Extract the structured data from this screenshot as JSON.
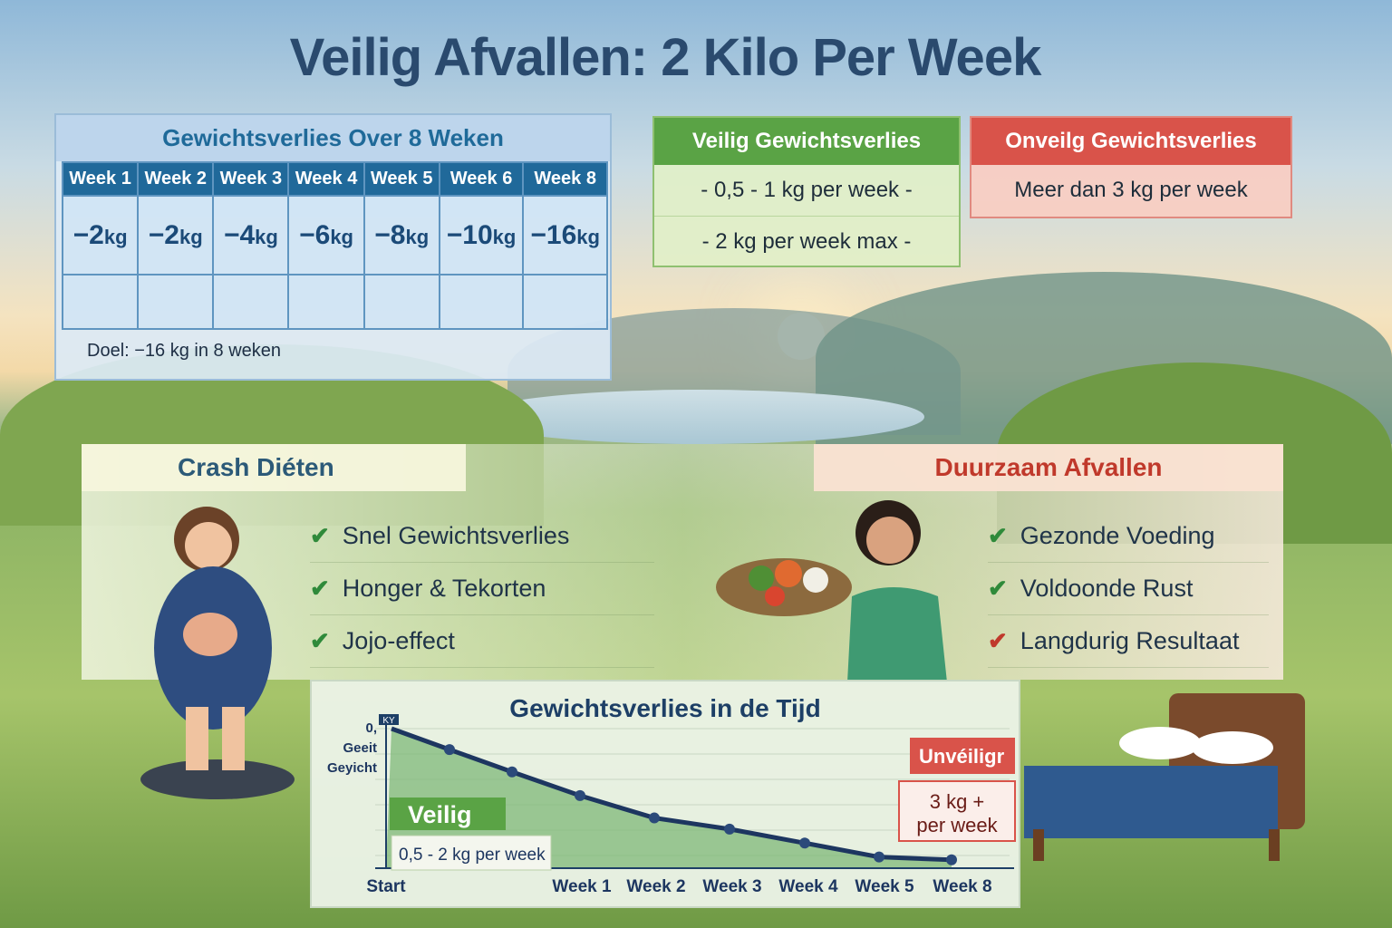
{
  "title": "Veilig Afvallen: 2 Kilo Per Week",
  "table": {
    "title": "Gewichtsverlies Over 8 Weken",
    "headers": [
      "Week 1",
      "Week 2",
      "Week 3",
      "Week 4",
      "Week 5",
      "Week 6",
      "Week 8"
    ],
    "values": [
      "−2",
      "−2",
      "−4",
      "−6",
      "−8",
      "−10",
      "−16"
    ],
    "unit": "kg",
    "goal": "Doel:  −16 kg in 8 weken"
  },
  "safe": {
    "title": "Veilig Gewichtsverlies",
    "rows": [
      "-  0,5 - 1 kg per week -",
      "-  2 kg per week max -"
    ],
    "color": "#5aa345"
  },
  "unsafe": {
    "title": "Onveilg Gewichtsverlies",
    "rows": [
      "Meer dan 3 kg per week"
    ],
    "color": "#d9534a"
  },
  "crash": {
    "title": "Crash Diéten",
    "items": [
      "Snel Gewichtsverlies",
      "Honger & Tekorten",
      "Jojo-effect"
    ]
  },
  "sustainable": {
    "title": "Duurzaam Afvallen",
    "items": [
      "Gezonde Voeding",
      "Voldoonde Rust",
      "Langdurig Resultaat"
    ]
  },
  "chart_data": {
    "type": "line",
    "title": "Gewichtsverlies in de Tijd",
    "ylabel_lines": [
      "0,",
      "Geeit",
      "Geyicht"
    ],
    "axis_badge": "KY",
    "x": [
      "Start",
      "",
      "",
      "Week 1",
      "Week 2",
      "Week 3",
      "Week 4",
      "Week 5",
      "Week 8"
    ],
    "values": [
      0,
      -1.5,
      -3.1,
      -4.8,
      -6.4,
      -7.2,
      -8.2,
      -9.2,
      -9.4
    ],
    "ylim": [
      -10,
      0
    ],
    "safe_label": "Veilig",
    "safe_range": "0,5 - 2 kg per week",
    "unsafe_label": "Unvéiligr",
    "unsafe_range": [
      "3 kg +",
      "per week"
    ]
  }
}
